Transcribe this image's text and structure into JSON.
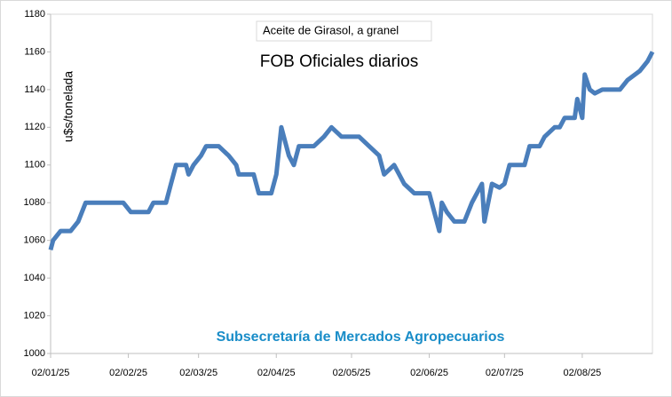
{
  "chart_data": {
    "type": "line",
    "title": "FOB Oficiales diarios",
    "subtitle": "Aceite de Girasol, a granel",
    "y_label": "u$s/tonelada",
    "source": "Subsecretaría de Mercados Agropecuarios",
    "x": [
      "02/01/25",
      "03/01/25",
      "06/01/25",
      "10/01/25",
      "13/01/25",
      "16/01/25",
      "20/01/25",
      "27/01/25",
      "31/01/25",
      "03/02/25",
      "10/02/25",
      "12/02/25",
      "17/02/25",
      "19/02/25",
      "21/02/25",
      "25/02/25",
      "26/02/25",
      "28/02/25",
      "03/03/25",
      "05/03/25",
      "10/03/25",
      "14/03/25",
      "17/03/25",
      "18/03/25",
      "20/03/25",
      "24/03/25",
      "26/03/25",
      "31/03/25",
      "02/04/25",
      "04/04/25",
      "07/04/25",
      "09/04/25",
      "11/04/25",
      "17/04/25",
      "21/04/25",
      "24/04/25",
      "28/04/25",
      "05/05/25",
      "09/05/25",
      "13/05/25",
      "15/05/25",
      "19/05/25",
      "21/05/25",
      "23/05/25",
      "27/05/25",
      "02/06/25",
      "04/06/25",
      "06/06/25",
      "07/06/25",
      "09/06/25",
      "12/06/25",
      "16/06/25",
      "19/06/25",
      "23/06/25",
      "24/06/25",
      "27/06/25",
      "30/06/25",
      "02/07/25",
      "04/07/25",
      "10/07/25",
      "12/07/25",
      "16/07/25",
      "18/07/25",
      "22/07/25",
      "24/07/25",
      "26/07/25",
      "30/07/25",
      "31/07/25",
      "02/08/25",
      "03/08/25",
      "05/08/25",
      "07/08/25",
      "10/08/25",
      "17/08/25",
      "20/08/25",
      "25/08/25",
      "28/08/25",
      "30/08/25"
    ],
    "series": [
      {
        "name": "FOB",
        "color": "#4a7ebb",
        "values": [
          1055,
          1060,
          1065,
          1065,
          1070,
          1080,
          1080,
          1080,
          1080,
          1075,
          1075,
          1080,
          1080,
          1090,
          1100,
          1100,
          1095,
          1100,
          1105,
          1110,
          1110,
          1105,
          1100,
          1095,
          1095,
          1095,
          1085,
          1085,
          1095,
          1120,
          1105,
          1100,
          1110,
          1110,
          1115,
          1120,
          1115,
          1115,
          1110,
          1105,
          1095,
          1100,
          1095,
          1090,
          1085,
          1085,
          1075,
          1065,
          1080,
          1075,
          1070,
          1070,
          1080,
          1090,
          1070,
          1090,
          1088,
          1090,
          1100,
          1100,
          1110,
          1110,
          1115,
          1120,
          1120,
          1125,
          1125,
          1135,
          1125,
          1148,
          1140,
          1138,
          1140,
          1140,
          1145,
          1150,
          1155,
          1160
        ]
      }
    ],
    "xlim": [
      "02/01/25",
      "30/08/25"
    ],
    "xticks": [
      "02/01/25",
      "02/02/25",
      "02/03/25",
      "02/04/25",
      "02/05/25",
      "02/06/25",
      "02/07/25",
      "02/08/25"
    ],
    "ylim": [
      1000,
      1180
    ],
    "yticks": [
      1000,
      1020,
      1040,
      1060,
      1080,
      1100,
      1120,
      1140,
      1160,
      1180
    ],
    "grid": false
  }
}
